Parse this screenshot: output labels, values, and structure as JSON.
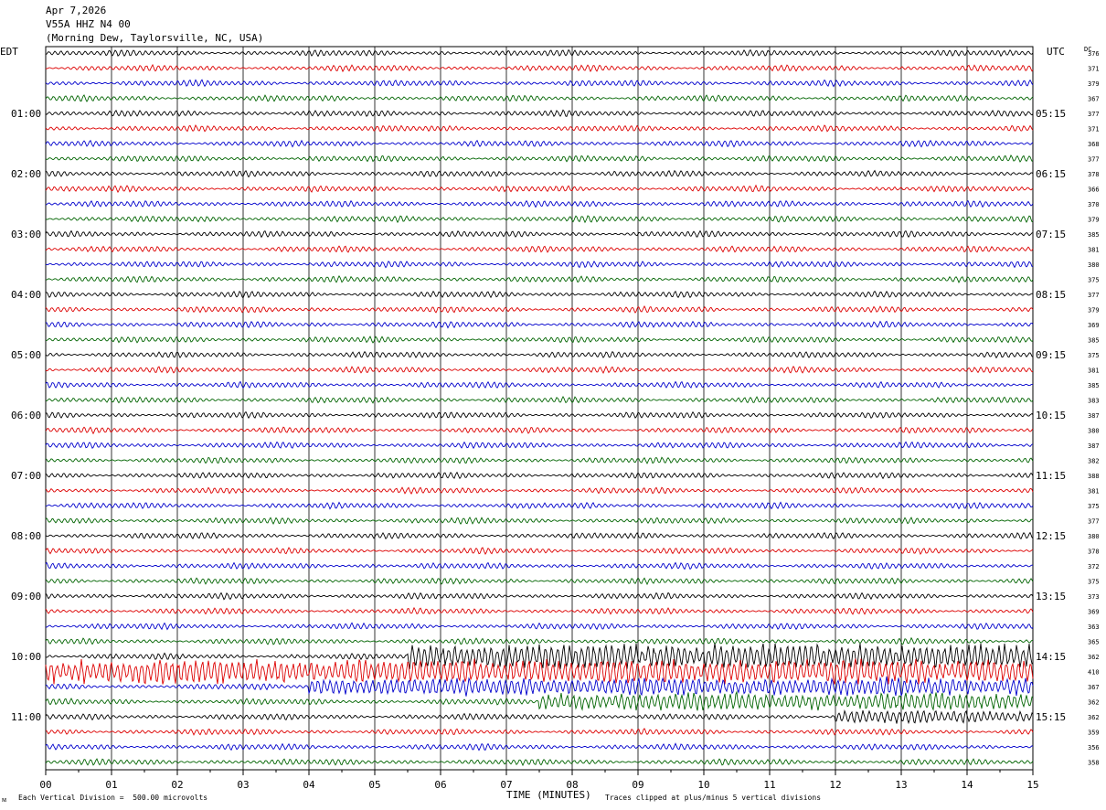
{
  "header": {
    "date": "Apr 7,2026",
    "station": "V55A HHZ N4 00",
    "location": "(Morning Dew, Taylorsville, NC, USA)"
  },
  "left_tz": "EDT",
  "right_tz": "UTC",
  "dc_label": "DC",
  "colors": {
    "black": "#000000",
    "red": "#dd0000",
    "blue": "#0000cc",
    "green": "#006400",
    "grid": "#000000"
  },
  "chart_data": {
    "type": "line",
    "title": "",
    "xlabel": "TIME (MINUTES)",
    "x_ticks": [
      "00",
      "01",
      "02",
      "03",
      "04",
      "05",
      "06",
      "07",
      "08",
      "09",
      "10",
      "11",
      "12",
      "13",
      "14",
      "15"
    ],
    "xlim": [
      0,
      15
    ],
    "traces_per_hour": 4,
    "trace_colors": [
      "black",
      "red",
      "blue",
      "green"
    ],
    "left_hour_labels": [
      "01:00",
      "02:00",
      "03:00",
      "04:00",
      "05:00",
      "06:00",
      "07:00",
      "08:00",
      "09:00",
      "10:00",
      "11:00"
    ],
    "right_hour_labels": [
      "05:15",
      "06:15",
      "07:15",
      "08:15",
      "09:15",
      "10:15",
      "11:15",
      "12:15",
      "13:15",
      "14:15",
      "15:15"
    ],
    "dc_offsets": [
      376,
      371,
      379,
      367,
      377,
      371,
      368,
      377,
      378,
      366,
      370,
      379,
      385,
      381,
      380,
      375,
      377,
      379,
      369,
      385,
      375,
      381,
      385,
      383,
      387,
      380,
      387,
      382,
      388,
      381,
      375,
      377,
      380,
      378,
      372,
      375,
      373,
      369,
      363,
      365,
      362,
      410,
      367,
      362,
      362,
      359,
      356,
      358
    ],
    "event_traces": [
      {
        "trace": 40,
        "start_min": 5.5,
        "amplitude": "high"
      },
      {
        "trace": 41,
        "start_min": 0.0,
        "amplitude": "high"
      },
      {
        "trace": 42,
        "start_min": 4.0,
        "amplitude": "medium"
      },
      {
        "trace": 43,
        "start_min": 7.5,
        "amplitude": "medium"
      },
      {
        "trace": 44,
        "start_min": 12.0,
        "amplitude": "low"
      }
    ]
  },
  "footer": {
    "division": "Each Vertical Division =  500.00 microvolts",
    "clip": "Traces clipped at plus/minus 5 vertical divisions",
    "corner": "ᴍ"
  }
}
